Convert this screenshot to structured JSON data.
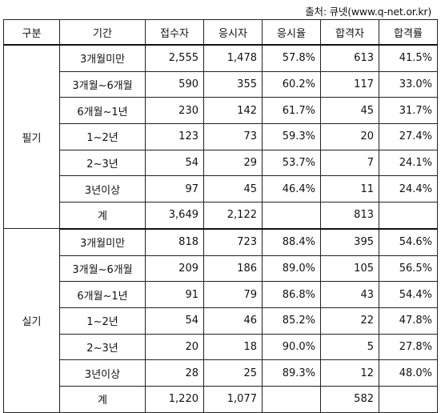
{
  "source": "출처: 큐넷(www.q-net.or.kr)",
  "table": {
    "headers": [
      "구분",
      "기간",
      "접수자",
      "응시자",
      "응시율",
      "합격자",
      "합격률"
    ],
    "sections": [
      {
        "group": "필기",
        "rows": [
          [
            "3개월미만",
            "2,555",
            "1,478",
            "57.8%",
            "613",
            "41.5%"
          ],
          [
            "3개월~6개월",
            "590",
            "355",
            "60.2%",
            "117",
            "33.0%"
          ],
          [
            "6개월~1년",
            "230",
            "142",
            "61.7%",
            "45",
            "31.7%"
          ],
          [
            "1~2년",
            "123",
            "73",
            "59.3%",
            "20",
            "27.4%"
          ],
          [
            "2~3년",
            "54",
            "29",
            "53.7%",
            "7",
            "24.1%"
          ],
          [
            "3년이상",
            "97",
            "45",
            "46.4%",
            "11",
            "24.4%"
          ],
          [
            "계",
            "3,649",
            "2,122",
            "",
            "813",
            ""
          ]
        ]
      },
      {
        "group": "실기",
        "rows": [
          [
            "3개월미만",
            "818",
            "723",
            "88.4%",
            "395",
            "54.6%"
          ],
          [
            "3개월~6개월",
            "209",
            "186",
            "89.0%",
            "105",
            "56.5%"
          ],
          [
            "6개월~1년",
            "91",
            "79",
            "86.8%",
            "43",
            "54.4%"
          ],
          [
            "1~2년",
            "54",
            "46",
            "85.2%",
            "22",
            "47.8%"
          ],
          [
            "2~3년",
            "20",
            "18",
            "90.0%",
            "5",
            "27.8%"
          ],
          [
            "3년이상",
            "28",
            "25",
            "89.3%",
            "12",
            "48.0%"
          ],
          [
            "계",
            "1,220",
            "1,077",
            "",
            "582",
            ""
          ]
        ]
      }
    ]
  }
}
